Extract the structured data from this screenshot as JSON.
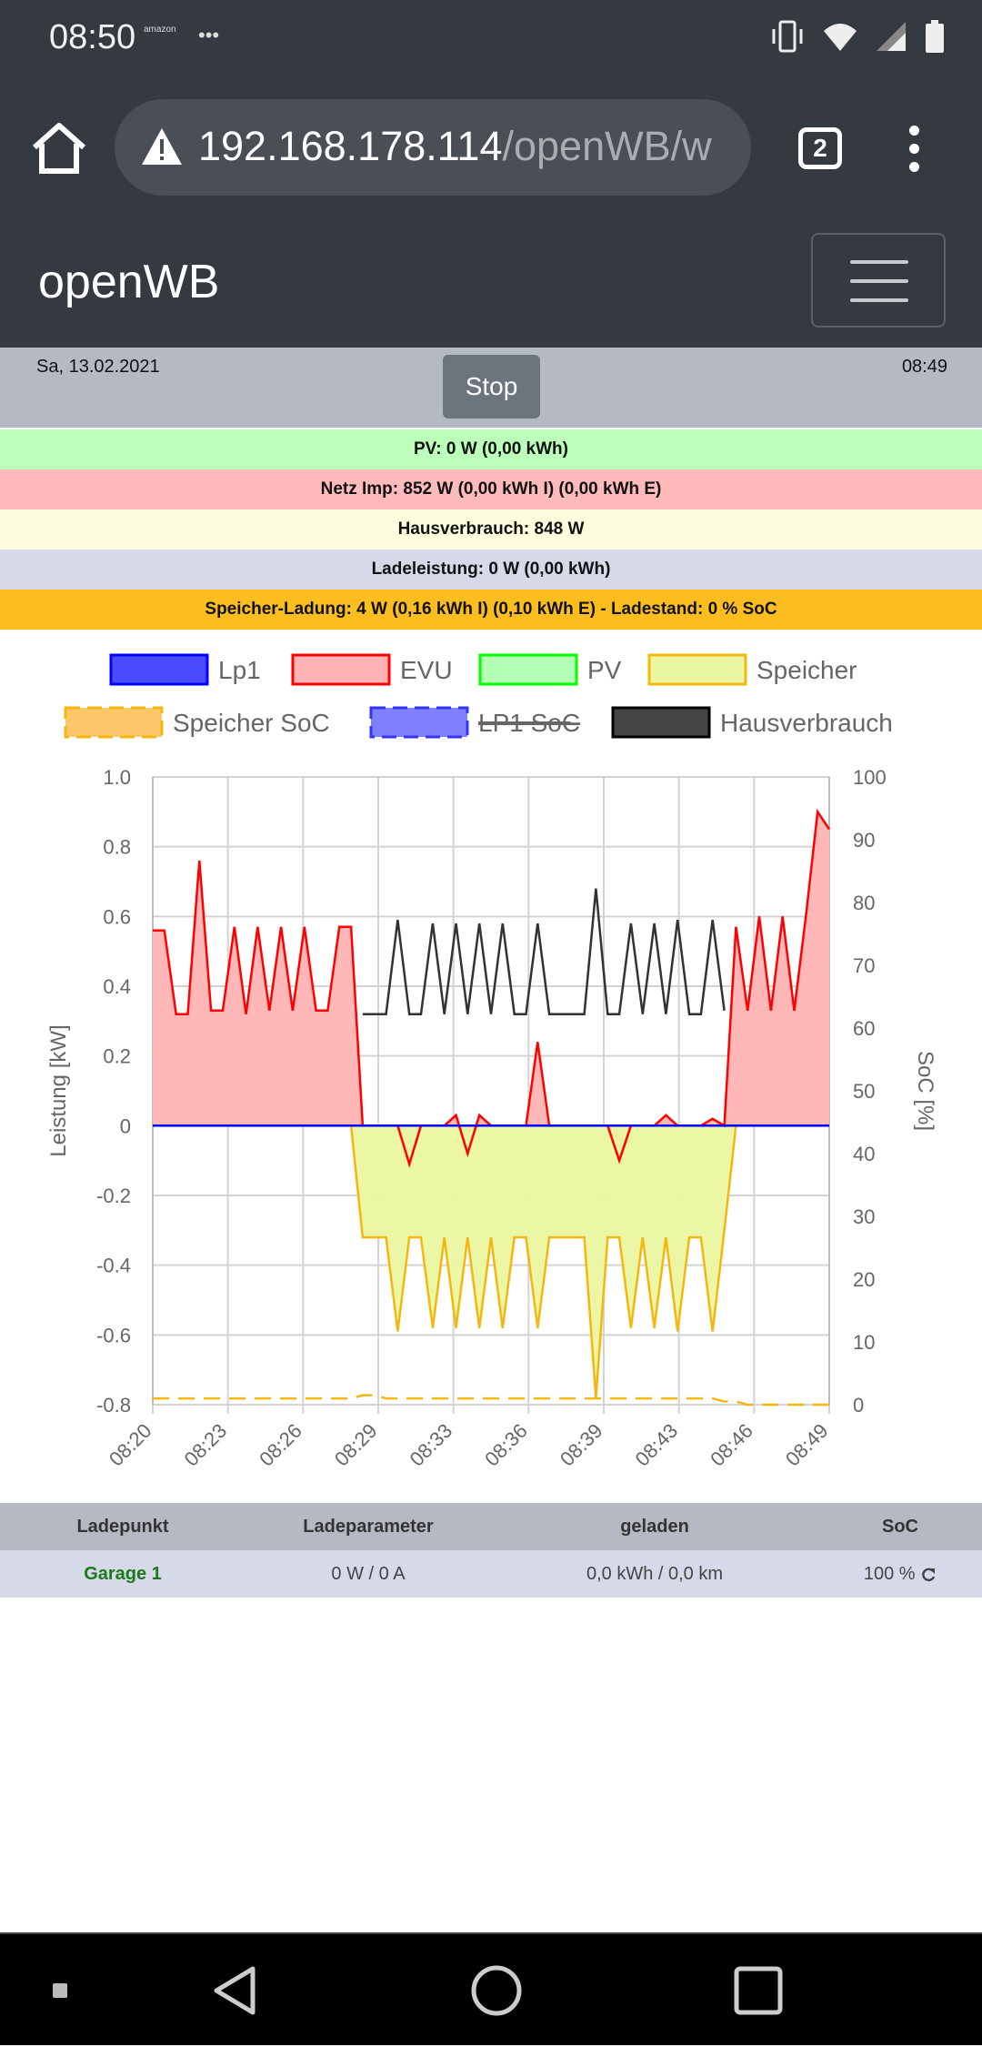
{
  "status": {
    "time": "08:50",
    "amazon": "amazon"
  },
  "browser": {
    "url_host": "192.168.178.114",
    "url_path": "/openWB/w",
    "tab_count": "2"
  },
  "app": {
    "brand": "openWB"
  },
  "header": {
    "date": "Sa, 13.02.2021",
    "time": "08:49",
    "stop_label": "Stop"
  },
  "info": {
    "pv": "PV: 0 W (0,00 kWh)",
    "evu": "Netz Imp: 852 W (0,00 kWh I) (0,00 kWh E)",
    "haus": "Hausverbrauch: 848 W",
    "lade": "Ladeleistung: 0 W (0,00 kWh)",
    "speicher": "Speicher-Ladung: 4 W (0,16 kWh I) (0,10 kWh E)  - Ladestand: 0 % SoC"
  },
  "colors": {
    "lp1": "#0000ff",
    "evu": "#ff0000",
    "evu_fill": "#ffb3b3",
    "pv": "#00ff00",
    "speicher": "#f5b70f",
    "speicher_fill": "#eaf7a0",
    "haus": "#333333"
  },
  "chart_data": {
    "type": "line",
    "ylabel": "Leistung [kW]",
    "y2label": "SoC [%]",
    "ylim": [
      -0.8,
      1.0
    ],
    "y2lim": [
      0,
      100
    ],
    "y_ticks": [
      "1.0",
      "0.8",
      "0.6",
      "0.4",
      "0.2",
      "0",
      "-0.2",
      "-0.4",
      "-0.6",
      "-0.8"
    ],
    "y2_ticks": [
      "100",
      "90",
      "80",
      "70",
      "60",
      "50",
      "40",
      "30",
      "20",
      "10",
      "0"
    ],
    "x_ticks": [
      "08:20",
      "08:23",
      "08:26",
      "08:29",
      "08:33",
      "08:36",
      "08:39",
      "08:43",
      "08:46",
      "08:49"
    ],
    "legend": [
      {
        "name": "Lp1",
        "color": "#0000ff",
        "fill": "#4a4aff",
        "hidden": false,
        "dashed": false
      },
      {
        "name": "EVU",
        "color": "#ff0000",
        "fill": "#ffb3b3",
        "hidden": false,
        "dashed": false
      },
      {
        "name": "PV",
        "color": "#00ff00",
        "fill": "#b3ffb3",
        "hidden": false,
        "dashed": false
      },
      {
        "name": "Speicher",
        "color": "#f5b70f",
        "fill": "#eaf7a0",
        "hidden": false,
        "dashed": false
      },
      {
        "name": "Speicher SoC",
        "color": "#f5b70f",
        "fill": "#fcc66a",
        "hidden": false,
        "dashed": true
      },
      {
        "name": "LP1 SoC",
        "color": "#3333ff",
        "fill": "#8080ff",
        "hidden": true,
        "dashed": true
      },
      {
        "name": "Hausverbrauch",
        "color": "#000000",
        "fill": "#444444",
        "hidden": false,
        "dashed": false
      }
    ],
    "x_min": [
      0,
      0.5,
      1,
      1.5,
      2,
      2.5,
      3,
      3.5,
      4,
      4.5,
      5,
      5.5,
      6,
      6.5,
      7,
      7.5,
      8,
      8.5,
      9,
      9.5,
      10,
      10.5,
      11,
      11.5,
      12,
      12.5,
      13,
      13.5,
      14,
      14.5,
      15,
      15.5,
      16,
      16.5,
      17,
      17.5,
      18,
      18.5,
      19,
      19.5,
      20,
      20.5,
      21,
      21.5,
      22,
      22.5,
      23,
      23.5,
      24,
      24.5,
      25,
      25.5,
      26,
      26.5,
      27,
      27.5,
      28,
      28.5,
      29
    ],
    "series": [
      {
        "name": "EVU",
        "values": [
          0.56,
          0.56,
          0.32,
          0.32,
          0.76,
          0.33,
          0.33,
          0.57,
          0.32,
          0.57,
          0.33,
          0.57,
          0.33,
          0.57,
          0.33,
          0.33,
          0.57,
          0.57,
          0.0,
          0.0,
          0.0,
          0.0,
          -0.11,
          0.0,
          0.0,
          0.0,
          0.03,
          -0.08,
          0.03,
          0.0,
          0.0,
          0.0,
          0.0,
          0.24,
          0.0,
          0.0,
          0.0,
          0.0,
          0.0,
          0.0,
          -0.1,
          0.0,
          0.0,
          0.0,
          0.03,
          0.0,
          0.0,
          0.0,
          0.02,
          0.0,
          0.57,
          0.33,
          0.6,
          0.33,
          0.6,
          0.33,
          0.6,
          0.9,
          0.85
        ]
      },
      {
        "name": "Speicher",
        "values": [
          0,
          0,
          0,
          0,
          0,
          0,
          0,
          0,
          0,
          0,
          0,
          0,
          0,
          0,
          0,
          0,
          0,
          0,
          -0.32,
          -0.32,
          -0.32,
          -0.59,
          -0.32,
          -0.32,
          -0.58,
          -0.32,
          -0.58,
          -0.32,
          -0.58,
          -0.32,
          -0.58,
          -0.32,
          -0.32,
          -0.58,
          -0.32,
          -0.32,
          -0.32,
          -0.32,
          -0.78,
          -0.32,
          -0.32,
          -0.58,
          -0.32,
          -0.58,
          -0.32,
          -0.59,
          -0.32,
          -0.32,
          -0.59,
          -0.3,
          0,
          0,
          0,
          0,
          0,
          0,
          0,
          0,
          0
        ]
      },
      {
        "name": "Hausverbrauch",
        "values": [
          null,
          null,
          null,
          null,
          null,
          null,
          null,
          null,
          null,
          null,
          null,
          null,
          null,
          null,
          null,
          null,
          null,
          null,
          0.32,
          0.32,
          0.32,
          0.59,
          0.32,
          0.32,
          0.58,
          0.32,
          0.58,
          0.32,
          0.58,
          0.32,
          0.58,
          0.32,
          0.32,
          0.58,
          0.32,
          0.32,
          0.32,
          0.32,
          0.68,
          0.32,
          0.32,
          0.58,
          0.32,
          0.58,
          0.32,
          0.59,
          0.32,
          0.32,
          0.59,
          0.33,
          null,
          null,
          null,
          null,
          null,
          null,
          null,
          null,
          null
        ]
      },
      {
        "name": "Lp1",
        "values": [
          0,
          0,
          0,
          0,
          0,
          0,
          0,
          0,
          0,
          0,
          0,
          0,
          0,
          0,
          0,
          0,
          0,
          0,
          0,
          0,
          0,
          0,
          0,
          0,
          0,
          0,
          0,
          0,
          0,
          0,
          0,
          0,
          0,
          0,
          0,
          0,
          0,
          0,
          0,
          0,
          0,
          0,
          0,
          0,
          0,
          0,
          0,
          0,
          0,
          0,
          0,
          0,
          0,
          0,
          0,
          0,
          0,
          0,
          0
        ]
      },
      {
        "name": "Speicher SoC",
        "values": [
          1,
          1,
          1,
          1,
          1,
          1,
          1,
          1,
          1,
          1,
          1,
          1,
          1,
          1,
          1,
          1,
          1,
          1,
          1.5,
          1.5,
          1,
          1,
          1,
          1,
          1,
          1,
          1,
          1,
          1,
          1,
          1,
          1,
          1,
          1,
          1,
          1,
          1,
          1,
          1,
          1,
          1,
          1,
          1,
          1,
          1,
          1,
          1,
          1,
          1,
          0.5,
          0.5,
          0,
          0,
          0,
          0,
          0,
          0,
          0,
          0
        ]
      }
    ]
  },
  "table": {
    "headers": [
      "Ladepunkt",
      "Ladeparameter",
      "geladen",
      "SoC"
    ],
    "row": {
      "name": "Garage 1",
      "param": "0 W / 0 A",
      "geladen": "0,0 kWh / 0,0 km",
      "soc": "100 % "
    }
  }
}
